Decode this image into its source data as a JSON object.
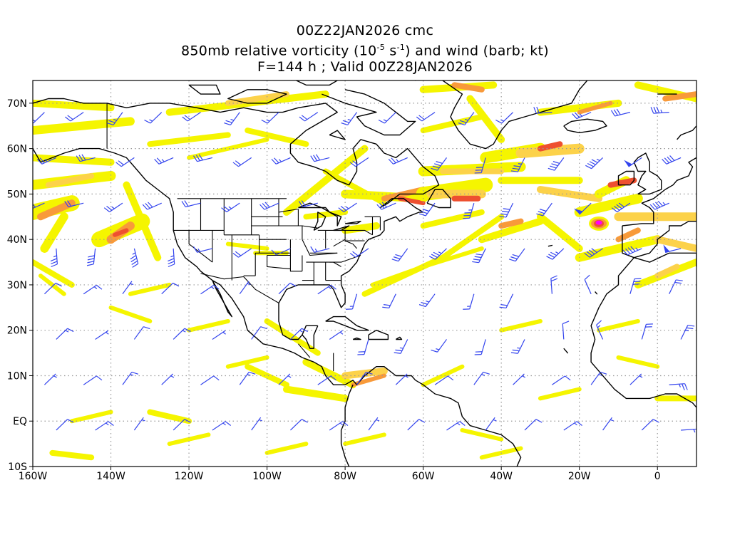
{
  "title": {
    "line1": "00Z22JAN2026 cmc",
    "line2_pre": "850mb relative vorticity (10",
    "line2_exp1": "-5",
    "line2_mid": " s",
    "line2_exp2": "-1",
    "line2_post": ") and wind (barb; kt)",
    "line3": "F=144 h ; Valid 00Z28JAN2026"
  },
  "axes": {
    "lat_labels": [
      "70N",
      "60N",
      "50N",
      "40N",
      "30N",
      "20N",
      "10N",
      "EQ",
      "10S"
    ],
    "lon_labels": [
      "160W",
      "140W",
      "120W",
      "100W",
      "80W",
      "60W",
      "40W",
      "20W",
      "0"
    ]
  },
  "colors": {
    "vort_yellow": "#f5f500",
    "vort_light_orange": "#fcd24a",
    "vort_orange": "#f89a3a",
    "vort_red": "#ee5030",
    "vort_magenta": "#ff00ff",
    "barb": "#3344ee",
    "coast": "#000000",
    "grid": "#999999"
  },
  "map": {
    "projection": "cylindrical equidistant",
    "lon_range": [
      -160,
      10
    ],
    "lat_range": [
      -10,
      75
    ]
  }
}
